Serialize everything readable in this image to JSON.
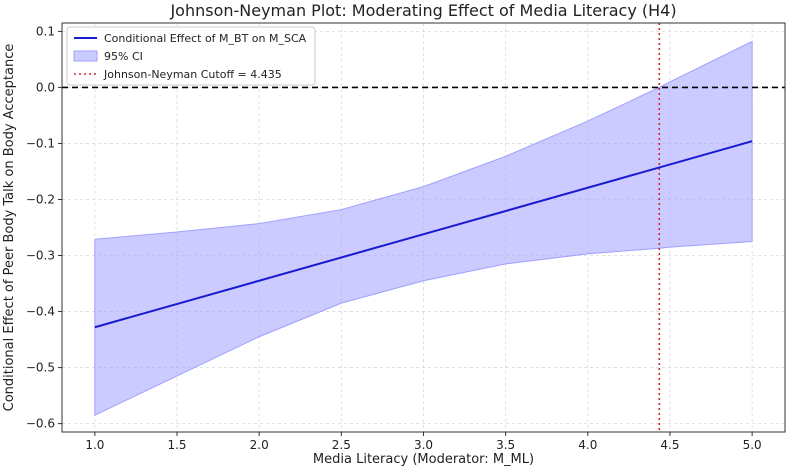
{
  "chart_data": {
    "type": "line",
    "title": "Johnson-Neyman Plot: Moderating Effect of Media Literacy (H4)",
    "xlabel": "Media Literacy (Moderator: M_ML)",
    "ylabel": "Conditional Effect of Peer Body Talk on Body Acceptance",
    "xlim": [
      0.8,
      5.2
    ],
    "ylim": [
      -0.615,
      0.115
    ],
    "x_ticks": [
      1.0,
      1.5,
      2.0,
      2.5,
      3.0,
      3.5,
      4.0,
      4.5,
      5.0
    ],
    "x_tick_labels": [
      "1.0",
      "1.5",
      "2.0",
      "2.5",
      "3.0",
      "3.5",
      "4.0",
      "4.5",
      "5.0"
    ],
    "y_ticks": [
      0.1,
      0.0,
      -0.1,
      -0.2,
      -0.3,
      -0.4,
      -0.5,
      -0.6
    ],
    "y_tick_labels": [
      "0.1",
      "0.0",
      "−0.1",
      "−0.2",
      "−0.3",
      "−0.4",
      "−0.5",
      "−0.6"
    ],
    "grid": true,
    "legend_position": "top-left",
    "series": [
      {
        "name": "Conditional Effect of M_BT on M_SCA",
        "kind": "line",
        "color": "#1a1ad0",
        "x": [
          1.0,
          5.0
        ],
        "y": [
          -0.428,
          -0.096
        ]
      },
      {
        "name": "95% CI",
        "kind": "band",
        "color": "#a0a0ff",
        "x": [
          1.0,
          1.5,
          2.0,
          2.5,
          3.0,
          3.5,
          4.0,
          4.435,
          4.5,
          5.0
        ],
        "lower": [
          -0.585,
          -0.515,
          -0.445,
          -0.385,
          -0.345,
          -0.315,
          -0.297,
          -0.287,
          -0.285,
          -0.275
        ],
        "upper": [
          -0.271,
          -0.258,
          -0.243,
          -0.218,
          -0.177,
          -0.123,
          -0.06,
          0.0,
          0.01,
          0.082
        ]
      }
    ],
    "reference_lines": [
      {
        "orientation": "horizontal",
        "value": 0.0,
        "style": "dashed",
        "color": "#000000"
      },
      {
        "orientation": "vertical",
        "value": 4.435,
        "style": "dotted",
        "color": "#d62728",
        "name": "Johnson-Neyman Cutoff = 4.435"
      }
    ]
  }
}
